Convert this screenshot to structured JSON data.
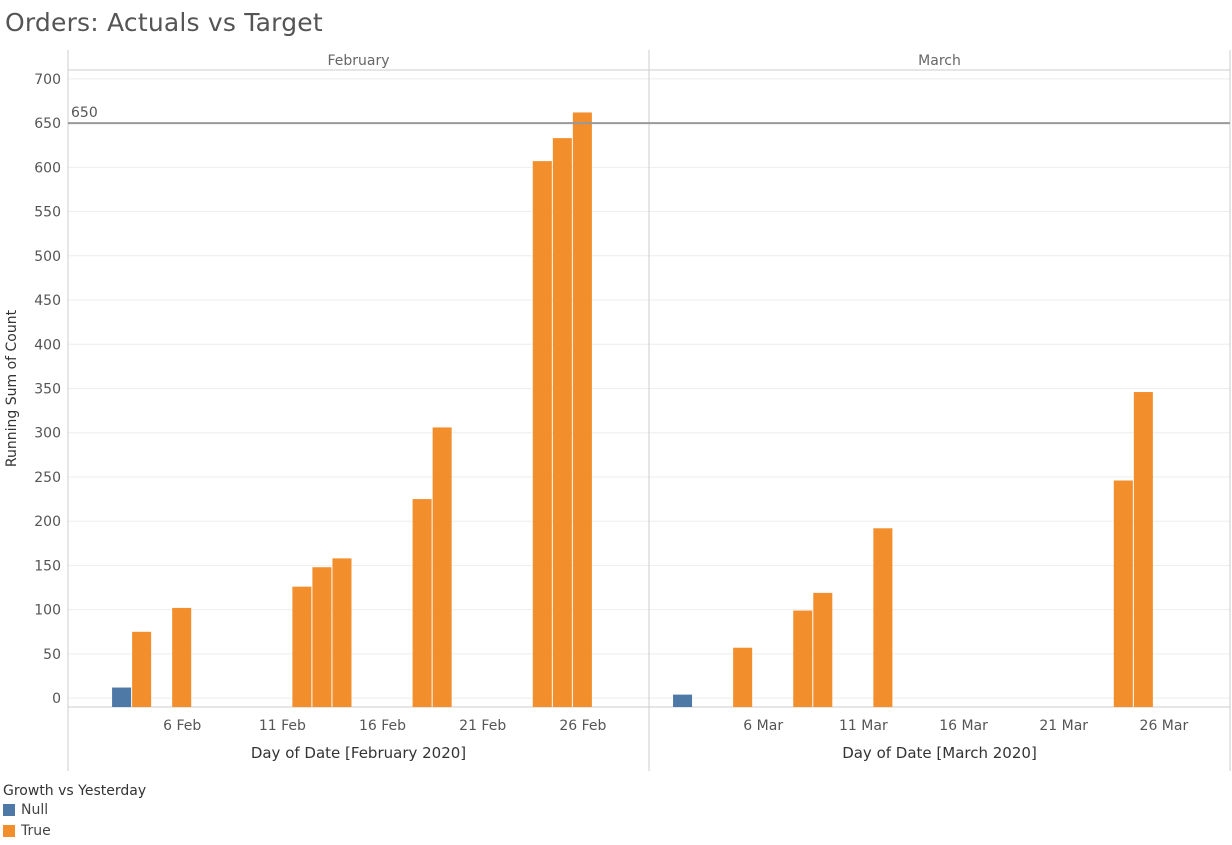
{
  "title": "Orders: Actuals vs Target",
  "colors": {
    "Null": "#4e79a7",
    "True": "#f28e2b",
    "refline": "#999999",
    "grid": "#eeeeee",
    "axis": "#cccccc"
  },
  "legend": {
    "title": "Growth vs Yesterday",
    "items": [
      {
        "label": "Null",
        "color": "#4e79a7"
      },
      {
        "label": "True",
        "color": "#f28e2b"
      }
    ]
  },
  "chart_data": {
    "type": "bar",
    "ylabel": "Running Sum of Count",
    "ylim": [
      -10,
      710
    ],
    "yticks": [
      0,
      50,
      100,
      150,
      200,
      250,
      300,
      350,
      400,
      450,
      500,
      550,
      600,
      650,
      700
    ],
    "reference_line": {
      "value": 650,
      "label": "650"
    },
    "grid": true,
    "legend_position": "bottom-left",
    "panels": [
      {
        "header": "February",
        "xlabel": "Day of Date [February 2020]",
        "x_range": [
          1,
          29
        ],
        "xticks": [
          {
            "day": 6,
            "label": "6 Feb"
          },
          {
            "day": 11,
            "label": "11 Feb"
          },
          {
            "day": 16,
            "label": "16 Feb"
          },
          {
            "day": 21,
            "label": "21 Feb"
          },
          {
            "day": 26,
            "label": "26 Feb"
          }
        ],
        "bars": [
          {
            "day": 3,
            "value": 12,
            "growth": "Null"
          },
          {
            "day": 4,
            "value": 75,
            "growth": "True"
          },
          {
            "day": 6,
            "value": 102,
            "growth": "True"
          },
          {
            "day": 12,
            "value": 126,
            "growth": "True"
          },
          {
            "day": 13,
            "value": 148,
            "growth": "True"
          },
          {
            "day": 14,
            "value": 158,
            "growth": "True"
          },
          {
            "day": 18,
            "value": 225,
            "growth": "True"
          },
          {
            "day": 19,
            "value": 306,
            "growth": "True"
          },
          {
            "day": 24,
            "value": 607,
            "growth": "True"
          },
          {
            "day": 25,
            "value": 633,
            "growth": "True"
          },
          {
            "day": 26,
            "value": 662,
            "growth": "True"
          }
        ]
      },
      {
        "header": "March",
        "xlabel": "Day of Date [March 2020]",
        "x_range": [
          1,
          29
        ],
        "xticks": [
          {
            "day": 6,
            "label": "6 Mar"
          },
          {
            "day": 11,
            "label": "11 Mar"
          },
          {
            "day": 16,
            "label": "16 Mar"
          },
          {
            "day": 21,
            "label": "21 Mar"
          },
          {
            "day": 26,
            "label": "26 Mar"
          }
        ],
        "bars": [
          {
            "day": 2,
            "value": 4,
            "growth": "Null"
          },
          {
            "day": 5,
            "value": 57,
            "growth": "True"
          },
          {
            "day": 8,
            "value": 99,
            "growth": "True"
          },
          {
            "day": 9,
            "value": 119,
            "growth": "True"
          },
          {
            "day": 12,
            "value": 192,
            "growth": "True"
          },
          {
            "day": 24,
            "value": 246,
            "growth": "True"
          },
          {
            "day": 25,
            "value": 346,
            "growth": "True"
          }
        ]
      }
    ]
  }
}
